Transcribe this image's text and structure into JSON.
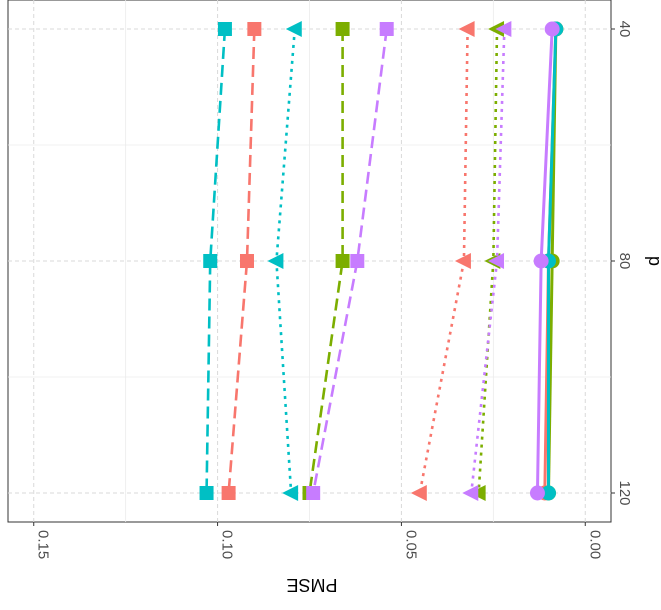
{
  "chart_data": {
    "type": "line",
    "orientation": "rotated-90",
    "xlabel": "p",
    "ylabel": "PMSE",
    "x_ticks": [
      "40",
      "80",
      "120"
    ],
    "x_values": [
      40,
      80,
      120
    ],
    "xlim": [
      35,
      125
    ],
    "y_ticks": [
      "0.00",
      "0.05",
      "0.10",
      "0.15"
    ],
    "y_tick_values": [
      0.0,
      0.05,
      0.1,
      0.15
    ],
    "ylim": [
      -0.007,
      0.157
    ],
    "grid": true,
    "legend": "none",
    "colors": {
      "red": "#F8766D",
      "green": "#7CAE00",
      "cyan": "#00BFC4",
      "purple": "#C77CFF"
    },
    "series": [
      {
        "color": "#00BFC4",
        "marker": "square",
        "linestyle": "longdash",
        "values": [
          0.098,
          0.102,
          0.103
        ]
      },
      {
        "color": "#F8766D",
        "marker": "square",
        "linestyle": "longdash",
        "values": [
          0.09,
          0.092,
          0.097
        ]
      },
      {
        "color": "#00BFC4",
        "marker": "triangle",
        "linestyle": "dotted",
        "values": [
          0.079,
          0.084,
          0.08
        ]
      },
      {
        "color": "#7CAE00",
        "marker": "square",
        "linestyle": "longdash",
        "values": [
          0.066,
          0.066,
          0.075
        ]
      },
      {
        "color": "#C77CFF",
        "marker": "square",
        "linestyle": "longdash",
        "values": [
          0.054,
          0.062,
          0.074
        ]
      },
      {
        "color": "#F8766D",
        "marker": "triangle",
        "linestyle": "dotted",
        "values": [
          0.032,
          0.033,
          0.045
        ]
      },
      {
        "color": "#7CAE00",
        "marker": "triangle",
        "linestyle": "dotted",
        "values": [
          0.024,
          0.025,
          0.029
        ]
      },
      {
        "color": "#C77CFF",
        "marker": "triangle",
        "linestyle": "dotted",
        "values": [
          0.022,
          0.024,
          0.031
        ]
      },
      {
        "color": "#F8766D",
        "marker": "circle",
        "linestyle": "solid",
        "values": [
          0.008,
          0.01,
          0.011
        ]
      },
      {
        "color": "#7CAE00",
        "marker": "circle",
        "linestyle": "solid",
        "values": [
          0.008,
          0.009,
          0.01
        ]
      },
      {
        "color": "#00BFC4",
        "marker": "circle",
        "linestyle": "solid",
        "values": [
          0.008,
          0.01,
          0.01
        ]
      },
      {
        "color": "#C77CFF",
        "marker": "circle",
        "linestyle": "solid",
        "values": [
          0.009,
          0.012,
          0.013
        ]
      }
    ]
  }
}
